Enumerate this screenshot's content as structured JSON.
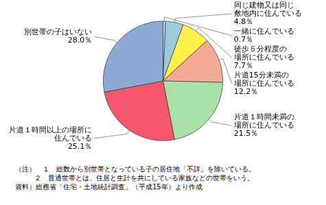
{
  "chart_data": {
    "type": "pie",
    "categories": [
      [
        "一緒に住んでいる"
      ],
      [
        "同じ建物又は同じ",
        "敷地内に住んでいる"
      ],
      [
        "徒歩５分程度の",
        "場所に住んでいる"
      ],
      [
        "片道15分未満の",
        "場所に住んでいる"
      ],
      [
        "片道１時間未満の",
        "場所に住んでいる"
      ],
      [
        "片道１時間以上の場所に",
        "住んでいる"
      ],
      [
        "別世帯の子はいない"
      ]
    ],
    "values": [
      0.7,
      4.8,
      7.7,
      12.2,
      21.5,
      25.1,
      28.0
    ],
    "value_labels": [
      "0.7％",
      "4.8％",
      "7.7％",
      "12.2％",
      "21.5％",
      "25.1％",
      "28.0％"
    ],
    "colors": [
      "#b9d4e8",
      "#9ccbdb",
      "#fff04a",
      "#f5aa98",
      "#a8e2a8",
      "#f4566e",
      "#8da9d6"
    ],
    "data_labels": true,
    "notes": [
      "（注）　１　総数から別世帯となっている子の居住地「不詳」を除いている。",
      "２　普通世帯とは、住居と生計を共にしている家族などの世帯をいう。"
    ],
    "source": "資料）総務省「住宅・土地統計調査」（平成15年）より作成"
  }
}
